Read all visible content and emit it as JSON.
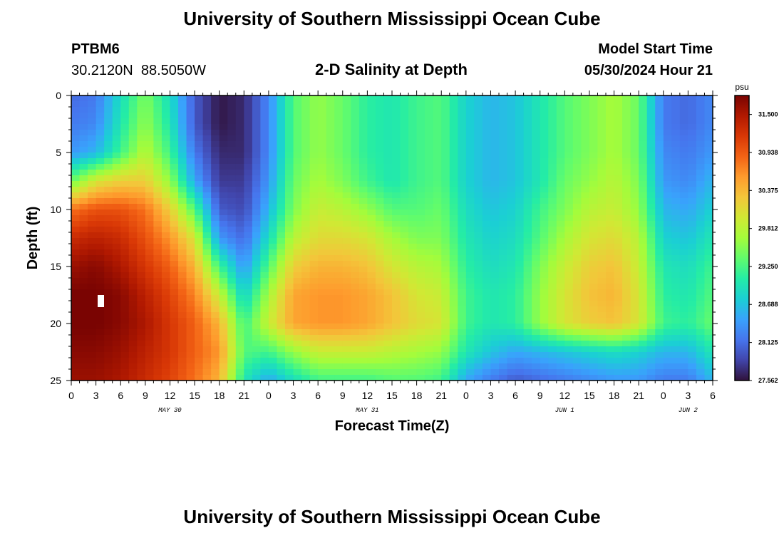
{
  "header": {
    "title": "University of Southern Mississippi Ocean Cube",
    "station_id": "PTBM6",
    "station_coords": "30.2120N  88.5050W",
    "chart_title": "2-D Salinity at Depth",
    "model_start_label": "Model Start Time",
    "model_start_value": "05/30/2024 Hour 21"
  },
  "footer": {
    "title": "University of Southern Mississippi Ocean Cube"
  },
  "chart_data": {
    "type": "heatmap",
    "title": "2-D Salinity at Depth",
    "xlabel": "Forecast Time(Z)",
    "ylabel": "Depth (ft)",
    "x_unit": "hours",
    "xlim": [
      0,
      78
    ],
    "ylim": [
      0,
      25
    ],
    "y_inverted": true,
    "x_ticks": [
      0,
      3,
      6,
      9,
      12,
      15,
      18,
      21,
      24,
      27,
      30,
      33,
      36,
      39,
      42,
      45,
      48,
      51,
      54,
      57,
      60,
      63,
      66,
      69,
      72,
      75,
      78
    ],
    "x_tick_labels": [
      "0",
      "3",
      "6",
      "9",
      "12",
      "15",
      "18",
      "21",
      "0",
      "3",
      "6",
      "9",
      "12",
      "15",
      "18",
      "21",
      "0",
      "3",
      "6",
      "9",
      "12",
      "15",
      "18",
      "21",
      "0",
      "3",
      "6"
    ],
    "y_ticks": [
      0,
      5,
      10,
      15,
      20,
      25
    ],
    "y_tick_labels": [
      "0",
      "5",
      "10",
      "15",
      "20",
      "25"
    ],
    "date_labels": [
      {
        "x": 12,
        "label": "MAY 30"
      },
      {
        "x": 36,
        "label": "MAY 31"
      },
      {
        "x": 60,
        "label": "JUN 1"
      },
      {
        "x": 75,
        "label": "JUN 2"
      }
    ],
    "colorbar": {
      "unit": "psu",
      "min": 27.562,
      "max": 31.781,
      "labels": [
        "31.500",
        "30.938",
        "30.375",
        "29.812",
        "29.250",
        "28.688",
        "28.125",
        "27.562"
      ],
      "label_values": [
        31.5,
        30.938,
        30.375,
        29.812,
        29.25,
        28.688,
        28.125,
        27.562
      ],
      "colormap": [
        "#30123b",
        "#4145ab",
        "#4675ed",
        "#39a2fc",
        "#1bcfd4",
        "#24eca6",
        "#61fc6c",
        "#a4fc3b",
        "#d1e834",
        "#f3c63a",
        "#fe9b2d",
        "#f36315",
        "#d93806",
        "#b11901",
        "#7a0402"
      ]
    },
    "field": {
      "x_hours": [
        0,
        3,
        6,
        9,
        12,
        15,
        18,
        21,
        24,
        27,
        30,
        33,
        36,
        39,
        42,
        45,
        48,
        51,
        54,
        57,
        60,
        63,
        66,
        69,
        72,
        75,
        78
      ],
      "depth_ft": [
        0,
        2.5,
        5,
        7.5,
        10,
        12.5,
        15,
        17.5,
        20,
        22.5,
        25
      ],
      "salinity_psu": [
        [
          28.1,
          28.2,
          28.9,
          29.5,
          28.9,
          28.0,
          27.6,
          27.7,
          28.3,
          29.3,
          29.6,
          29.4,
          29.1,
          29.0,
          29.2,
          29.3,
          28.8,
          28.6,
          28.7,
          29.0,
          29.3,
          29.5,
          29.7,
          29.4,
          28.2,
          28.1,
          28.3
        ],
        [
          28.2,
          28.3,
          29.0,
          29.6,
          29.0,
          28.0,
          27.6,
          27.7,
          28.3,
          29.3,
          29.6,
          29.4,
          29.1,
          29.0,
          29.2,
          29.3,
          28.8,
          28.6,
          28.7,
          29.0,
          29.3,
          29.5,
          29.7,
          29.4,
          28.2,
          28.1,
          28.3
        ],
        [
          28.4,
          28.6,
          29.2,
          29.8,
          29.2,
          28.2,
          27.7,
          27.7,
          28.3,
          29.3,
          29.6,
          29.4,
          29.1,
          29.0,
          29.2,
          29.3,
          28.8,
          28.6,
          28.7,
          29.0,
          29.3,
          29.5,
          29.7,
          29.4,
          28.3,
          28.2,
          28.4
        ],
        [
          29.4,
          30.0,
          30.2,
          30.2,
          29.6,
          28.5,
          27.8,
          27.8,
          28.4,
          29.4,
          29.7,
          29.5,
          29.2,
          29.0,
          29.2,
          29.3,
          28.8,
          28.6,
          28.7,
          29.0,
          29.4,
          29.6,
          29.8,
          29.5,
          28.4,
          28.3,
          28.6
        ],
        [
          30.8,
          31.0,
          31.0,
          30.8,
          30.2,
          29.3,
          28.0,
          27.9,
          28.6,
          29.5,
          29.9,
          29.8,
          29.6,
          29.3,
          29.3,
          29.4,
          28.9,
          28.7,
          28.8,
          29.2,
          29.5,
          29.8,
          29.9,
          29.6,
          28.6,
          28.5,
          28.8
        ],
        [
          31.3,
          31.4,
          31.3,
          31.0,
          30.6,
          30.0,
          28.4,
          28.1,
          28.9,
          29.8,
          30.1,
          30.1,
          30.0,
          29.7,
          29.5,
          29.5,
          29.0,
          28.8,
          28.9,
          29.3,
          29.7,
          30.0,
          30.1,
          29.8,
          28.8,
          28.7,
          29.0
        ],
        [
          31.6,
          31.7,
          31.5,
          31.2,
          30.9,
          30.4,
          29.2,
          28.4,
          29.3,
          30.2,
          30.4,
          30.4,
          30.3,
          30.0,
          29.8,
          29.7,
          29.1,
          28.9,
          29.0,
          29.5,
          29.9,
          30.2,
          30.3,
          29.9,
          29.0,
          28.9,
          29.2
        ],
        [
          31.8,
          31.8,
          31.7,
          31.4,
          31.1,
          30.7,
          29.9,
          28.8,
          29.7,
          30.5,
          30.6,
          30.6,
          30.5,
          30.3,
          30.0,
          29.9,
          29.2,
          29.0,
          29.1,
          29.6,
          30.0,
          30.3,
          30.4,
          30.0,
          29.1,
          29.0,
          29.3
        ],
        [
          31.8,
          31.8,
          31.7,
          31.5,
          31.2,
          30.9,
          30.4,
          29.2,
          29.9,
          30.5,
          30.6,
          30.6,
          30.5,
          30.3,
          30.1,
          30.0,
          29.2,
          29.0,
          29.1,
          29.6,
          30.0,
          30.2,
          30.3,
          30.0,
          29.2,
          29.1,
          29.4
        ],
        [
          31.7,
          31.7,
          31.6,
          31.4,
          31.2,
          30.9,
          30.6,
          29.3,
          29.2,
          29.6,
          29.9,
          29.9,
          29.9,
          29.8,
          29.7,
          29.6,
          29.0,
          28.7,
          28.5,
          28.6,
          28.7,
          28.8,
          28.9,
          28.8,
          28.6,
          28.6,
          29.0
        ],
        [
          31.6,
          31.6,
          31.5,
          31.3,
          31.1,
          30.8,
          30.4,
          29.0,
          28.5,
          28.9,
          29.2,
          29.2,
          29.2,
          29.3,
          29.3,
          29.2,
          28.5,
          28.2,
          28.0,
          28.1,
          28.2,
          28.3,
          28.4,
          28.4,
          28.2,
          28.2,
          28.6
        ]
      ]
    }
  }
}
